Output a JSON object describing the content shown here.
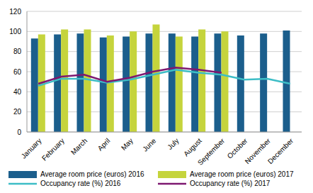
{
  "chart_data": {
    "type": "bar",
    "categories": [
      "January",
      "February",
      "March",
      "April",
      "May",
      "June",
      "July",
      "August",
      "September",
      "October",
      "November",
      "December"
    ],
    "ylim": [
      0,
      120
    ],
    "yticks": [
      0,
      20,
      40,
      60,
      80,
      100,
      120
    ],
    "grid": true,
    "legend": "bottom",
    "series": [
      {
        "name": "Average room price (euros) 2016",
        "type": "bar",
        "color": "#1b5e8c",
        "values": [
          93,
          97,
          98,
          94,
          95,
          98,
          98,
          95,
          98,
          96,
          98,
          101
        ]
      },
      {
        "name": "Average room price (euros) 2017",
        "type": "bar",
        "color": "#c5d43c",
        "values": [
          97,
          102,
          102,
          96,
          100,
          107,
          95,
          102,
          100,
          null,
          null,
          null
        ]
      },
      {
        "name": "Occupancy rate (%) 2016",
        "type": "line",
        "color": "#3dbdc6",
        "values": [
          46,
          53,
          53,
          49,
          52,
          57,
          62,
          59,
          57,
          52,
          53,
          48
        ]
      },
      {
        "name": "Occupancy rate (%) 2017",
        "type": "line",
        "color": "#7d1870",
        "values": [
          48,
          55,
          57,
          50,
          54,
          60,
          64,
          62,
          59,
          null,
          null,
          null
        ]
      }
    ]
  }
}
